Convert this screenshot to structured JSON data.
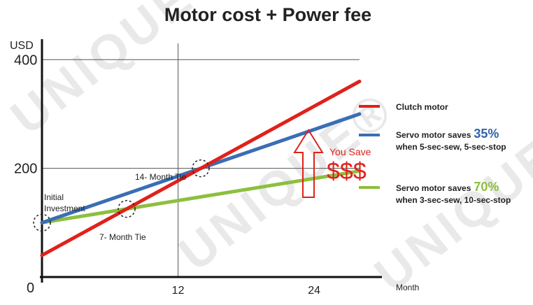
{
  "chart_data": {
    "type": "line",
    "title": "Motor cost + Power fee",
    "ylabel": "USD",
    "xlabel": "Month",
    "xlim": [
      0,
      28
    ],
    "ylim": [
      0,
      430
    ],
    "x_ticks": [
      0,
      12,
      24
    ],
    "y_ticks": [
      200,
      400
    ],
    "origin_label": "0",
    "series": [
      {
        "name": "Clutch motor",
        "color": "#e0211b",
        "x": [
          0,
          28
        ],
        "y": [
          40,
          360
        ]
      },
      {
        "name": "Servo motor saves 35% when 5-sec-sew, 5-sec-stop",
        "color": "#3a6eb5",
        "x": [
          0,
          28
        ],
        "y": [
          100,
          300
        ]
      },
      {
        "name": "Servo motor saves 70% when 3-sec-sew, 10-sec-stop",
        "color": "#8dbf3f",
        "x": [
          0,
          28
        ],
        "y": [
          100,
          195
        ]
      }
    ],
    "annotations": {
      "initial": [
        "Initial",
        "Investment"
      ],
      "tie_7": "7- Month Tie",
      "tie_14": "14- Month Tie",
      "you_save": "You Save",
      "dollars": "$$$"
    },
    "legend": [
      {
        "label": "Clutch motor",
        "pct": "",
        "sub": "",
        "color": "#e0211b"
      },
      {
        "label": "Servo motor saves",
        "pct": "35%",
        "pct_color": "#2f64ad",
        "sub": "when 5-sec-sew, 5-sec-stop",
        "color": "#3a6eb5"
      },
      {
        "label": "Servo motor saves",
        "pct": "70%",
        "pct_color": "#8dbf3f",
        "sub": "when 3-sec-sew, 10-sec-stop",
        "color": "#8dbf3f"
      }
    ],
    "grid": true
  },
  "watermark": "UNIQUE®"
}
